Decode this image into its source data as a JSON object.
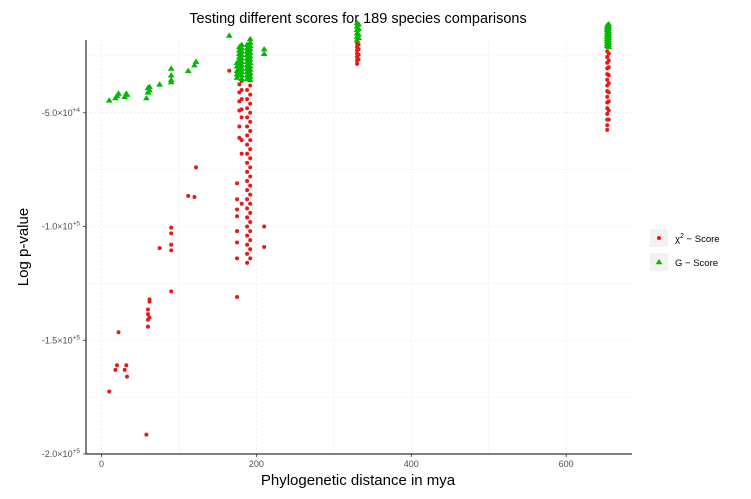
{
  "chart_data": {
    "type": "scatter",
    "title": "Testing different scores for 189 species comparisons",
    "xlabel": "Phylogenetic distance in mya",
    "ylabel": "Log p-value",
    "xlim": [
      -20,
      685
    ],
    "ylim": [
      -200000,
      -18000
    ],
    "x_ticks": [
      {
        "value": 0,
        "label": "0"
      },
      {
        "value": 200,
        "label": "200"
      },
      {
        "value": 400,
        "label": "400"
      },
      {
        "value": 600,
        "label": "600"
      }
    ],
    "y_ticks": [
      {
        "value": -200000,
        "mantissa": "-2.0",
        "exponent": "+5"
      },
      {
        "value": -150000,
        "mantissa": "-1.5",
        "exponent": "+5"
      },
      {
        "value": -100000,
        "mantissa": "-1.0",
        "exponent": "+5"
      },
      {
        "value": -50000,
        "mantissa": "-5.0",
        "exponent": "+4"
      }
    ],
    "grid": true,
    "legend_position": "right",
    "series": [
      {
        "name": "χ² − Score",
        "name_base": "χ",
        "name_sup": "2",
        "name_rest": " − Score",
        "marker": "circle",
        "color": "#e41a1c",
        "points": [
          [
            10,
            -172500
          ],
          [
            18,
            -163000
          ],
          [
            20,
            -161000
          ],
          [
            22,
            -146500
          ],
          [
            30,
            -163000
          ],
          [
            32,
            -161000
          ],
          [
            33,
            -166000
          ],
          [
            58,
            -191500
          ],
          [
            60,
            -136500
          ],
          [
            60,
            -138500
          ],
          [
            60,
            -141000
          ],
          [
            60,
            -144000
          ],
          [
            62,
            -133000
          ],
          [
            62,
            -132000
          ],
          [
            62,
            -140000
          ],
          [
            75,
            -109500
          ],
          [
            90,
            -100500
          ],
          [
            90,
            -103000
          ],
          [
            90,
            -108000
          ],
          [
            90,
            -110500
          ],
          [
            90,
            -128500
          ],
          [
            112,
            -86500
          ],
          [
            120,
            -87000
          ],
          [
            122,
            -74000
          ],
          [
            165,
            -31500
          ],
          [
            175,
            -81000
          ],
          [
            175,
            -88000
          ],
          [
            175,
            -92500
          ],
          [
            175,
            -95500
          ],
          [
            175,
            -102000
          ],
          [
            175,
            -107000
          ],
          [
            175,
            -114000
          ],
          [
            175,
            -131000
          ],
          [
            178,
            -29000
          ],
          [
            178,
            -33500
          ],
          [
            178,
            -37500
          ],
          [
            178,
            -41000
          ],
          [
            178,
            -45000
          ],
          [
            178,
            -49000
          ],
          [
            178,
            -56000
          ],
          [
            178,
            -61000
          ],
          [
            181,
            -32000
          ],
          [
            181,
            -36000
          ],
          [
            181,
            -40000
          ],
          [
            181,
            -44000
          ],
          [
            181,
            -48500
          ],
          [
            181,
            -52000
          ],
          [
            181,
            -62000
          ],
          [
            181,
            -68000
          ],
          [
            181,
            -90000
          ],
          [
            188,
            -40000
          ],
          [
            188,
            -44000
          ],
          [
            188,
            -48000
          ],
          [
            188,
            -52000
          ],
          [
            188,
            -56000
          ],
          [
            188,
            -60000
          ],
          [
            188,
            -64000
          ],
          [
            188,
            -68000
          ],
          [
            188,
            -72000
          ],
          [
            188,
            -76000
          ],
          [
            188,
            -80000
          ],
          [
            188,
            -84000
          ],
          [
            188,
            -88000
          ],
          [
            188,
            -92000
          ],
          [
            188,
            -96000
          ],
          [
            188,
            -100000
          ],
          [
            188,
            -104000
          ],
          [
            188,
            -108000
          ],
          [
            188,
            -112000
          ],
          [
            188,
            -116000
          ],
          [
            192,
            -30000
          ],
          [
            192,
            -34000
          ],
          [
            192,
            -38000
          ],
          [
            192,
            -42000
          ],
          [
            192,
            -46000
          ],
          [
            192,
            -50000
          ],
          [
            192,
            -54000
          ],
          [
            192,
            -58000
          ],
          [
            192,
            -62000
          ],
          [
            192,
            -66000
          ],
          [
            192,
            -70000
          ],
          [
            192,
            -74000
          ],
          [
            192,
            -78000
          ],
          [
            192,
            -82000
          ],
          [
            192,
            -86000
          ],
          [
            192,
            -90000
          ],
          [
            192,
            -94000
          ],
          [
            192,
            -98000
          ],
          [
            192,
            -102000
          ],
          [
            192,
            -106000
          ],
          [
            192,
            -110000
          ],
          [
            192,
            -114000
          ],
          [
            210,
            -100000
          ],
          [
            210,
            -109000
          ],
          [
            330,
            -19500
          ],
          [
            330,
            -21000
          ],
          [
            330,
            -22500
          ],
          [
            330,
            -24000
          ],
          [
            330,
            -25500
          ],
          [
            330,
            -27000
          ],
          [
            330,
            -28500
          ],
          [
            332,
            -20000
          ],
          [
            332,
            -22000
          ],
          [
            332,
            -24500
          ],
          [
            332,
            -26500
          ],
          [
            653,
            -23000
          ],
          [
            653,
            -25500
          ],
          [
            653,
            -28000
          ],
          [
            653,
            -30500
          ],
          [
            653,
            -33000
          ],
          [
            653,
            -35500
          ],
          [
            653,
            -38000
          ],
          [
            653,
            -40500
          ],
          [
            653,
            -43000
          ],
          [
            653,
            -45500
          ],
          [
            653,
            -48000
          ],
          [
            653,
            -50500
          ],
          [
            653,
            -53000
          ],
          [
            653,
            -55500
          ],
          [
            653,
            -57500
          ],
          [
            655,
            -24000
          ],
          [
            655,
            -27000
          ],
          [
            655,
            -30000
          ],
          [
            655,
            -33500
          ],
          [
            655,
            -37000
          ],
          [
            655,
            -41000
          ],
          [
            655,
            -45000
          ],
          [
            655,
            -49000
          ],
          [
            655,
            -53000
          ]
        ]
      },
      {
        "name": "G − Score",
        "name_base": "G",
        "name_sup": "",
        "name_rest": " − Score",
        "marker": "triangle",
        "color": "#00ba00",
        "points": [
          [
            10,
            -44500
          ],
          [
            18,
            -43500
          ],
          [
            20,
            -42500
          ],
          [
            22,
            -41500
          ],
          [
            30,
            -43000
          ],
          [
            32,
            -41500
          ],
          [
            33,
            -42000
          ],
          [
            58,
            -43500
          ],
          [
            60,
            -41000
          ],
          [
            60,
            -39000
          ],
          [
            62,
            -40000
          ],
          [
            62,
            -38500
          ],
          [
            75,
            -37500
          ],
          [
            90,
            -33500
          ],
          [
            90,
            -35500
          ],
          [
            90,
            -36500
          ],
          [
            90,
            -30500
          ],
          [
            112,
            -31500
          ],
          [
            120,
            -29000
          ],
          [
            122,
            -27500
          ],
          [
            165,
            -16000
          ],
          [
            175,
            -28000
          ],
          [
            175,
            -29500
          ],
          [
            175,
            -31500
          ],
          [
            175,
            -33000
          ],
          [
            175,
            -34500
          ],
          [
            178,
            -21000
          ],
          [
            178,
            -22500
          ],
          [
            178,
            -24000
          ],
          [
            178,
            -25500
          ],
          [
            178,
            -27000
          ],
          [
            178,
            -28500
          ],
          [
            178,
            -30000
          ],
          [
            178,
            -31500
          ],
          [
            178,
            -33000
          ],
          [
            181,
            -20000
          ],
          [
            181,
            -21500
          ],
          [
            181,
            -23000
          ],
          [
            181,
            -24500
          ],
          [
            181,
            -26000
          ],
          [
            181,
            -27500
          ],
          [
            181,
            -29000
          ],
          [
            181,
            -30500
          ],
          [
            181,
            -32000
          ],
          [
            181,
            -33500
          ],
          [
            181,
            -35000
          ],
          [
            188,
            -20000
          ],
          [
            188,
            -21500
          ],
          [
            188,
            -23000
          ],
          [
            188,
            -24500
          ],
          [
            188,
            -26000
          ],
          [
            188,
            -27500
          ],
          [
            188,
            -29000
          ],
          [
            188,
            -30500
          ],
          [
            188,
            -32000
          ],
          [
            188,
            -33500
          ],
          [
            188,
            -35000
          ],
          [
            192,
            -17500
          ],
          [
            192,
            -19000
          ],
          [
            192,
            -20500
          ],
          [
            192,
            -22000
          ],
          [
            192,
            -23500
          ],
          [
            192,
            -25000
          ],
          [
            192,
            -26500
          ],
          [
            192,
            -28000
          ],
          [
            192,
            -29500
          ],
          [
            192,
            -31000
          ],
          [
            192,
            -32500
          ],
          [
            192,
            -34000
          ],
          [
            192,
            -35500
          ],
          [
            210,
            -22000
          ],
          [
            210,
            -24000
          ],
          [
            330,
            -10500
          ],
          [
            330,
            -12000
          ],
          [
            330,
            -13500
          ],
          [
            330,
            -15000
          ],
          [
            330,
            -16500
          ],
          [
            330,
            -18000
          ],
          [
            332,
            -11000
          ],
          [
            332,
            -13000
          ],
          [
            332,
            -15500
          ],
          [
            332,
            -17000
          ],
          [
            653,
            -11500
          ],
          [
            653,
            -12500
          ],
          [
            653,
            -13500
          ],
          [
            653,
            -14500
          ],
          [
            653,
            -15500
          ],
          [
            653,
            -16500
          ],
          [
            653,
            -17500
          ],
          [
            653,
            -18500
          ],
          [
            653,
            -19500
          ],
          [
            653,
            -20500
          ],
          [
            655,
            -11000
          ],
          [
            655,
            -12000
          ],
          [
            655,
            -13000
          ],
          [
            655,
            -14000
          ],
          [
            655,
            -15000
          ],
          [
            655,
            -16000
          ],
          [
            655,
            -17000
          ],
          [
            655,
            -18000
          ],
          [
            655,
            -19000
          ],
          [
            655,
            -20000
          ],
          [
            655,
            -21000
          ]
        ]
      }
    ]
  }
}
